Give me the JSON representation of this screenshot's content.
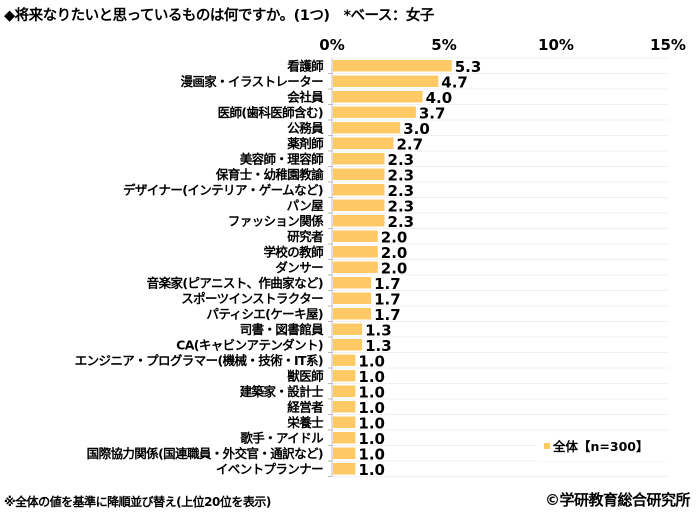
{
  "chart_data": {
    "type": "bar",
    "orientation": "horizontal",
    "title": "◆将来なりたいと思っているものは何ですか。(1つ)　*ベース：女子",
    "categories": [
      "看護師",
      "漫画家・イラストレーター",
      "会社員",
      "医師(歯科医師含む)",
      "公務員",
      "薬剤師",
      "美容師・理容師",
      "保育士・幼稚園教諭",
      "デザイナー(インテリア・ゲームなど)",
      "パン屋",
      "ファッション関係",
      "研究者",
      "学校の教師",
      "ダンサー",
      "音楽家(ピアニスト、作曲家など)",
      "スポーツインストラクター",
      "パティシエ(ケーキ屋)",
      "司書・図書館員",
      "CA(キャビンアテンダント)",
      "エンジニア・プログラマー(機械・技術・IT系)",
      "獣医師",
      "建築家・設計士",
      "経営者",
      "栄養士",
      "歌手・アイドル",
      "国際協力関係(国連職員・外交官・通訳など)",
      "イベントプランナー"
    ],
    "series": [
      {
        "name": "全体【n=300】",
        "values": [
          5.3,
          4.7,
          4.0,
          3.7,
          3.0,
          2.7,
          2.3,
          2.3,
          2.3,
          2.3,
          2.3,
          2.0,
          2.0,
          2.0,
          1.7,
          1.7,
          1.7,
          1.3,
          1.3,
          1.0,
          1.0,
          1.0,
          1.0,
          1.0,
          1.0,
          1.0,
          1.0
        ],
        "color": "#FFC966"
      }
    ],
    "value_labels": [
      "5.3",
      "4.7",
      "4.0",
      "3.7",
      "3.0",
      "2.7",
      "2.3",
      "2.3",
      "2.3",
      "2.3",
      "2.3",
      "2.0",
      "2.0",
      "2.0",
      "1.7",
      "1.7",
      "1.7",
      "1.3",
      "1.3",
      "1.0",
      "1.0",
      "1.0",
      "1.0",
      "1.0",
      "1.0",
      "1.0",
      "1.0"
    ],
    "xlim": [
      0,
      15
    ],
    "xticks": [
      "0%",
      "5%",
      "10%",
      "15%"
    ],
    "xtick_values": [
      0,
      5,
      10,
      15
    ],
    "legend": "bottom-right",
    "grid": false
  },
  "footer": {
    "note": "※全体の値を基準に降順並び替え(上位20位を表示)",
    "copyright": "©学研教育総合研究所"
  }
}
